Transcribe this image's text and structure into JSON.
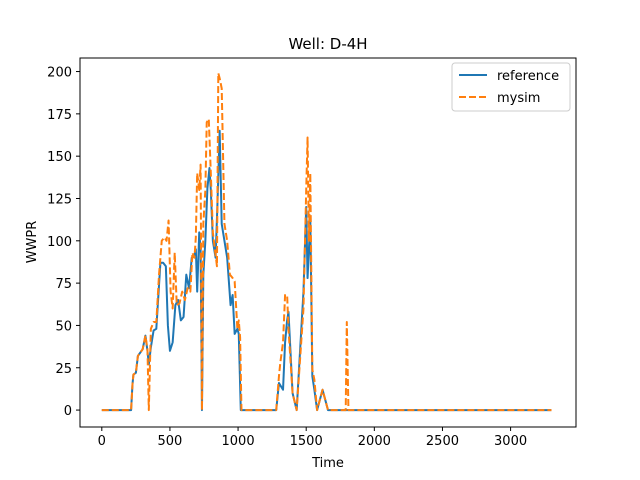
{
  "chart_data": {
    "type": "line",
    "title": "Well: D-4H",
    "xlabel": "Time",
    "ylabel": "WWPR",
    "xlim": [
      -160,
      3480
    ],
    "ylim": [
      -10,
      208
    ],
    "xticks": [
      0,
      500,
      1000,
      1500,
      2000,
      2500,
      3000
    ],
    "yticks": [
      0,
      25,
      50,
      75,
      100,
      125,
      150,
      175,
      200
    ],
    "grid": false,
    "legend_position": "top-right",
    "series": [
      {
        "name": "reference",
        "color": "#1f77b4",
        "style": "solid",
        "x": [
          0,
          215,
          225,
          232,
          250,
          265,
          300,
          320,
          335,
          345,
          360,
          380,
          400,
          430,
          450,
          470,
          485,
          500,
          520,
          540,
          560,
          580,
          600,
          620,
          640,
          660,
          680,
          690,
          700,
          715,
          725,
          735,
          745,
          760,
          775,
          790,
          800,
          815,
          835,
          848,
          865,
          880,
          900,
          920,
          945,
          960,
          975,
          995,
          1005,
          1020,
          1030,
          1280,
          1300,
          1330,
          1345,
          1360,
          1370,
          1400,
          1430,
          1480,
          1500,
          1510,
          1520,
          1530,
          1545,
          1560,
          1580,
          1620,
          1660,
          1680,
          1700,
          1790,
          3300
        ],
        "y": [
          0,
          0,
          15,
          21,
          22,
          32,
          36,
          44,
          35,
          27,
          37,
          47,
          48,
          87,
          87,
          85,
          50,
          35,
          40,
          62,
          65,
          53,
          55,
          80,
          72,
          90,
          91,
          95,
          70,
          105,
          95,
          0,
          80,
          100,
          131,
          143,
          130,
          100,
          90,
          120,
          165,
          110,
          100,
          90,
          62,
          68,
          45,
          48,
          45,
          0,
          0,
          0,
          16,
          12,
          40,
          53,
          58,
          10,
          0,
          70,
          120,
          78,
          95,
          113,
          20,
          12,
          0,
          12,
          0,
          0,
          0,
          0,
          0
        ]
      },
      {
        "name": "mysim",
        "color": "#ff7f0e",
        "style": "dashed",
        "x": [
          0,
          215,
          225,
          232,
          250,
          265,
          300,
          320,
          335,
          345,
          360,
          380,
          400,
          420,
          440,
          460,
          475,
          490,
          505,
          520,
          535,
          550,
          570,
          590,
          610,
          630,
          650,
          665,
          680,
          690,
          700,
          715,
          725,
          735,
          745,
          760,
          770,
          785,
          800,
          815,
          830,
          845,
          855,
          865,
          880,
          900,
          920,
          940,
          960,
          975,
          995,
          1005,
          1015,
          1025,
          1035,
          1280,
          1300,
          1310,
          1330,
          1345,
          1360,
          1370,
          1400,
          1430,
          1480,
          1500,
          1510,
          1520,
          1530,
          1545,
          1560,
          1580,
          1620,
          1660,
          1680,
          1700,
          1790,
          1798,
          1810,
          3300
        ],
        "y": [
          0,
          0,
          15,
          21,
          22,
          32,
          36,
          44,
          36,
          0,
          48,
          52,
          52,
          80,
          100,
          102,
          100,
          112,
          70,
          60,
          93,
          62,
          63,
          70,
          65,
          72,
          70,
          93,
          90,
          102,
          140,
          130,
          145,
          0,
          110,
          130,
          170,
          172,
          140,
          105,
          95,
          85,
          199,
          196,
          190,
          110,
          100,
          80,
          78,
          76,
          48,
          53,
          43,
          0,
          0,
          0,
          20,
          28,
          40,
          68,
          68,
          48,
          10,
          0,
          60,
          130,
          161,
          100,
          140,
          24,
          18,
          0,
          12,
          0,
          0,
          0,
          0,
          52,
          0,
          0
        ]
      }
    ]
  }
}
